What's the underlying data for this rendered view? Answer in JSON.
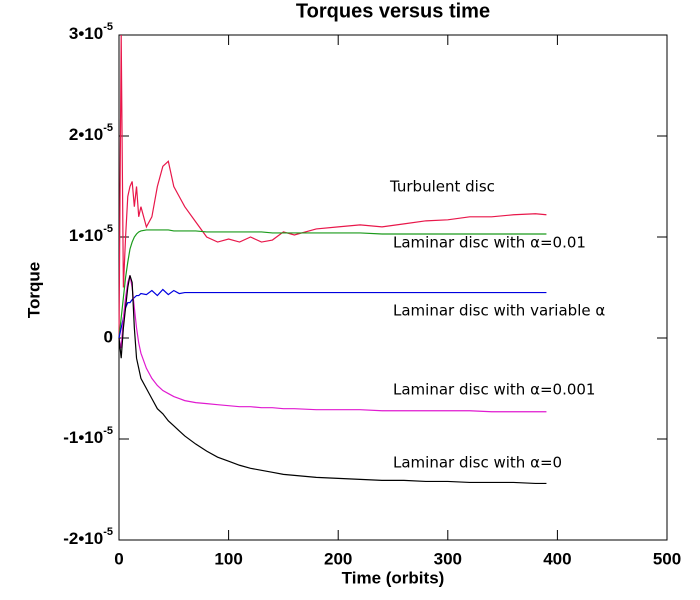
{
  "chart_data": {
    "type": "line",
    "title": "Torques versus time",
    "x_label": "Time (orbits)",
    "y_label": "Torque",
    "xlim": [
      0,
      500
    ],
    "xticks": [
      0,
      100,
      200,
      300,
      400,
      500
    ],
    "ylim": [
      -2e-05,
      3e-05
    ],
    "yticks": [
      {
        "value": -2e-05,
        "label": "-2•10",
        "exponent": "-5"
      },
      {
        "value": -1e-05,
        "label": "-1•10",
        "exponent": "-5"
      },
      0,
      {
        "value": 1e-05,
        "label": "1•10",
        "exponent": "-5"
      },
      {
        "value": 2e-05,
        "label": "2•10",
        "exponent": "-5"
      },
      {
        "value": 3e-05,
        "label": "3•10",
        "exponent": "-5"
      }
    ],
    "x": [
      0,
      2,
      4,
      6,
      8,
      10,
      12,
      14,
      16,
      18,
      20,
      25,
      30,
      35,
      40,
      45,
      50,
      55,
      60,
      70,
      80,
      90,
      100,
      110,
      120,
      130,
      140,
      150,
      160,
      180,
      200,
      220,
      240,
      260,
      280,
      300,
      320,
      340,
      360,
      380,
      390
    ],
    "series": [
      {
        "name": "Turbulent disc",
        "color": "#e8174a",
        "values": [
          0,
          3e-05,
          5e-06,
          1e-05,
          1.4e-05,
          1.5e-05,
          1.55e-05,
          1.3e-05,
          1.5e-05,
          1.2e-05,
          1.3e-05,
          1.1e-05,
          1.2e-05,
          1.5e-05,
          1.7e-05,
          1.75e-05,
          1.5e-05,
          1.4e-05,
          1.3e-05,
          1.15e-05,
          1e-05,
          9.5e-06,
          9.8e-06,
          9.5e-06,
          1e-05,
          9.5e-06,
          9.7e-06,
          1.05e-05,
          1.02e-05,
          1.08e-05,
          1.1e-05,
          1.12e-05,
          1.1e-05,
          1.13e-05,
          1.16e-05,
          1.17e-05,
          1.2e-05,
          1.2e-05,
          1.22e-05,
          1.23e-05,
          1.22e-05
        ]
      },
      {
        "name": "Laminar disc with α=0.01",
        "color": "#1a9a1a",
        "values": [
          0,
          2e-06,
          4e-06,
          6e-06,
          7.5e-06,
          8.8e-06,
          9.5e-06,
          1e-05,
          1.03e-05,
          1.05e-05,
          1.06e-05,
          1.07e-05,
          1.07e-05,
          1.07e-05,
          1.07e-05,
          1.07e-05,
          1.06e-05,
          1.06e-05,
          1.06e-05,
          1.06e-05,
          1.05e-05,
          1.05e-05,
          1.05e-05,
          1.05e-05,
          1.05e-05,
          1.05e-05,
          1.04e-05,
          1.04e-05,
          1.04e-05,
          1.04e-05,
          1.04e-05,
          1.04e-05,
          1.03e-05,
          1.03e-05,
          1.03e-05,
          1.03e-05,
          1.03e-05,
          1.03e-05,
          1.03e-05,
          1.03e-05,
          1.03e-05
        ]
      },
      {
        "name": "Laminar disc with variable α",
        "color": "#0000e0",
        "values": [
          0,
          1e-06,
          2e-06,
          3e-06,
          3.5e-06,
          3.5e-06,
          3.8e-06,
          4e-06,
          4.2e-06,
          4.2e-06,
          4.4e-06,
          4.3e-06,
          4.7e-06,
          4.2e-06,
          4.8e-06,
          4.3e-06,
          4.7e-06,
          4.4e-06,
          4.5e-06,
          4.5e-06,
          4.5e-06,
          4.5e-06,
          4.5e-06,
          4.5e-06,
          4.5e-06,
          4.5e-06,
          4.5e-06,
          4.5e-06,
          4.5e-06,
          4.5e-06,
          4.5e-06,
          4.5e-06,
          4.5e-06,
          4.5e-06,
          4.5e-06,
          4.5e-06,
          4.5e-06,
          4.5e-06,
          4.5e-06,
          4.5e-06,
          4.5e-06
        ]
      },
      {
        "name": "Laminar disc with α=0.001",
        "color": "#e01ad0",
        "values": [
          0,
          -1e-06,
          2e-06,
          4e-06,
          5.5e-06,
          6.2e-06,
          5e-06,
          3e-06,
          1e-06,
          -5e-07,
          -1.5e-06,
          -3e-06,
          -4e-06,
          -4.7e-06,
          -5.2e-06,
          -5.5e-06,
          -5.8e-06,
          -6e-06,
          -6.2e-06,
          -6.4e-06,
          -6.5e-06,
          -6.6e-06,
          -6.7e-06,
          -6.8e-06,
          -6.8e-06,
          -6.9e-06,
          -6.9e-06,
          -7e-06,
          -7e-06,
          -7.1e-06,
          -7.1e-06,
          -7.1e-06,
          -7.2e-06,
          -7.2e-06,
          -7.2e-06,
          -7.2e-06,
          -7.2e-06,
          -7.3e-06,
          -7.3e-06,
          -7.3e-06,
          -7.3e-06
        ]
      },
      {
        "name": "Laminar disc with α=0",
        "color": "#000000",
        "values": [
          0,
          -2e-06,
          1e-06,
          3e-06,
          5e-06,
          6.2e-06,
          5.5e-06,
          1e-06,
          -2e-06,
          -3e-06,
          -4e-06,
          -5e-06,
          -6e-06,
          -7e-06,
          -7.5e-06,
          -8.2e-06,
          -8.7e-06,
          -9.2e-06,
          -9.7e-06,
          -1.05e-05,
          -1.12e-05,
          -1.18e-05,
          -1.22e-05,
          -1.26e-05,
          -1.29e-05,
          -1.31e-05,
          -1.33e-05,
          -1.35e-05,
          -1.36e-05,
          -1.38e-05,
          -1.39e-05,
          -1.4e-05,
          -1.41e-05,
          -1.41e-05,
          -1.42e-05,
          -1.42e-05,
          -1.43e-05,
          -1.43e-05,
          -1.43e-05,
          -1.44e-05,
          -1.44e-05
        ]
      }
    ]
  }
}
